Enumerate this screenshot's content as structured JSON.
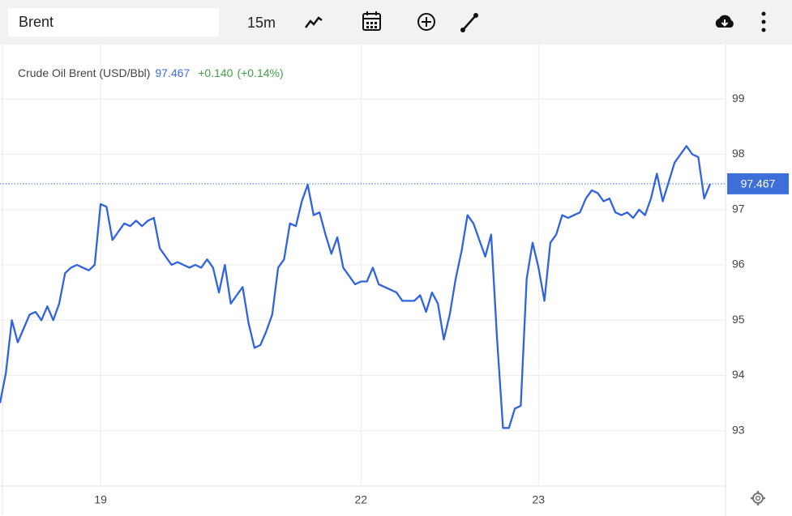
{
  "toolbar": {
    "search": "Brent",
    "interval": "15m"
  },
  "chart_data": {
    "type": "line",
    "categories": [
      null,
      null,
      null,
      null,
      null,
      null,
      null,
      null,
      null,
      null,
      null,
      null,
      null,
      null,
      null,
      null,
      null,
      "19",
      null,
      null,
      null,
      null,
      null,
      null,
      null,
      null,
      null,
      null,
      null,
      null,
      null,
      null,
      null,
      null,
      null,
      null,
      null,
      null,
      null,
      null,
      null,
      null,
      null,
      null,
      null,
      null,
      null,
      null,
      null,
      null,
      null,
      null,
      null,
      null,
      null,
      null,
      null,
      null,
      null,
      null,
      null,
      "22",
      null,
      null,
      null,
      null,
      null,
      null,
      null,
      null,
      null,
      null,
      null,
      null,
      null,
      null,
      null,
      null,
      null,
      null,
      null,
      null,
      null,
      null,
      null,
      null,
      null,
      null,
      null,
      null,
      null,
      "23",
      null,
      null,
      null,
      null,
      null,
      null,
      null,
      null,
      null,
      null,
      null,
      null,
      null,
      null,
      null,
      null,
      null,
      null,
      null,
      null,
      null,
      null,
      null,
      null,
      null,
      null,
      null,
      null,
      null
    ],
    "series": [
      {
        "name": "Crude Oil Brent (USD/Bbl)",
        "color": "#2f63e0",
        "values": [
          93.5,
          94.05,
          95.0,
          94.6,
          94.85,
          95.1,
          95.15,
          95.0,
          95.25,
          95.0,
          95.3,
          95.85,
          95.95,
          96.0,
          95.95,
          95.9,
          96.0,
          97.1,
          97.05,
          96.45,
          96.6,
          96.75,
          96.7,
          96.8,
          96.7,
          96.8,
          96.85,
          96.3,
          96.15,
          96.0,
          96.05,
          96.0,
          95.95,
          96.0,
          95.95,
          96.1,
          95.95,
          95.5,
          96.0,
          95.3,
          95.45,
          95.6,
          94.95,
          94.5,
          94.55,
          94.8,
          95.1,
          95.95,
          96.1,
          96.75,
          96.7,
          97.15,
          97.45,
          96.9,
          96.95,
          96.55,
          96.2,
          96.5,
          95.95,
          95.8,
          95.65,
          95.7,
          95.7,
          95.95,
          95.65,
          95.6,
          95.55,
          95.5,
          95.35,
          95.35,
          95.35,
          95.45,
          95.15,
          95.5,
          95.3,
          94.65,
          95.1,
          95.75,
          96.25,
          96.9,
          96.75,
          96.45,
          96.15,
          96.55,
          94.65,
          93.05,
          93.05,
          93.4,
          93.45,
          95.75,
          96.4,
          95.95,
          95.35,
          96.4,
          96.55,
          96.9,
          96.85,
          96.9,
          96.95,
          97.2,
          97.35,
          97.3,
          97.15,
          97.2,
          96.95,
          96.9,
          96.95,
          96.85,
          97.0,
          96.9,
          97.2,
          97.65,
          97.15,
          97.5,
          97.85,
          98.0,
          98.15,
          98.0,
          97.95,
          97.2,
          97.467
        ]
      }
    ],
    "last_value": 97.467,
    "change": {
      "value": 0.14,
      "label": "+0.140"
    },
    "change_percent": {
      "value": 0.14,
      "label": "(+0.14%)"
    },
    "change_color": "#43a047",
    "value_color": "#3d6fd8",
    "ylim": [
      92,
      100
    ],
    "yticks": [
      93,
      94,
      95,
      96,
      97,
      98,
      99
    ],
    "grid": true
  }
}
